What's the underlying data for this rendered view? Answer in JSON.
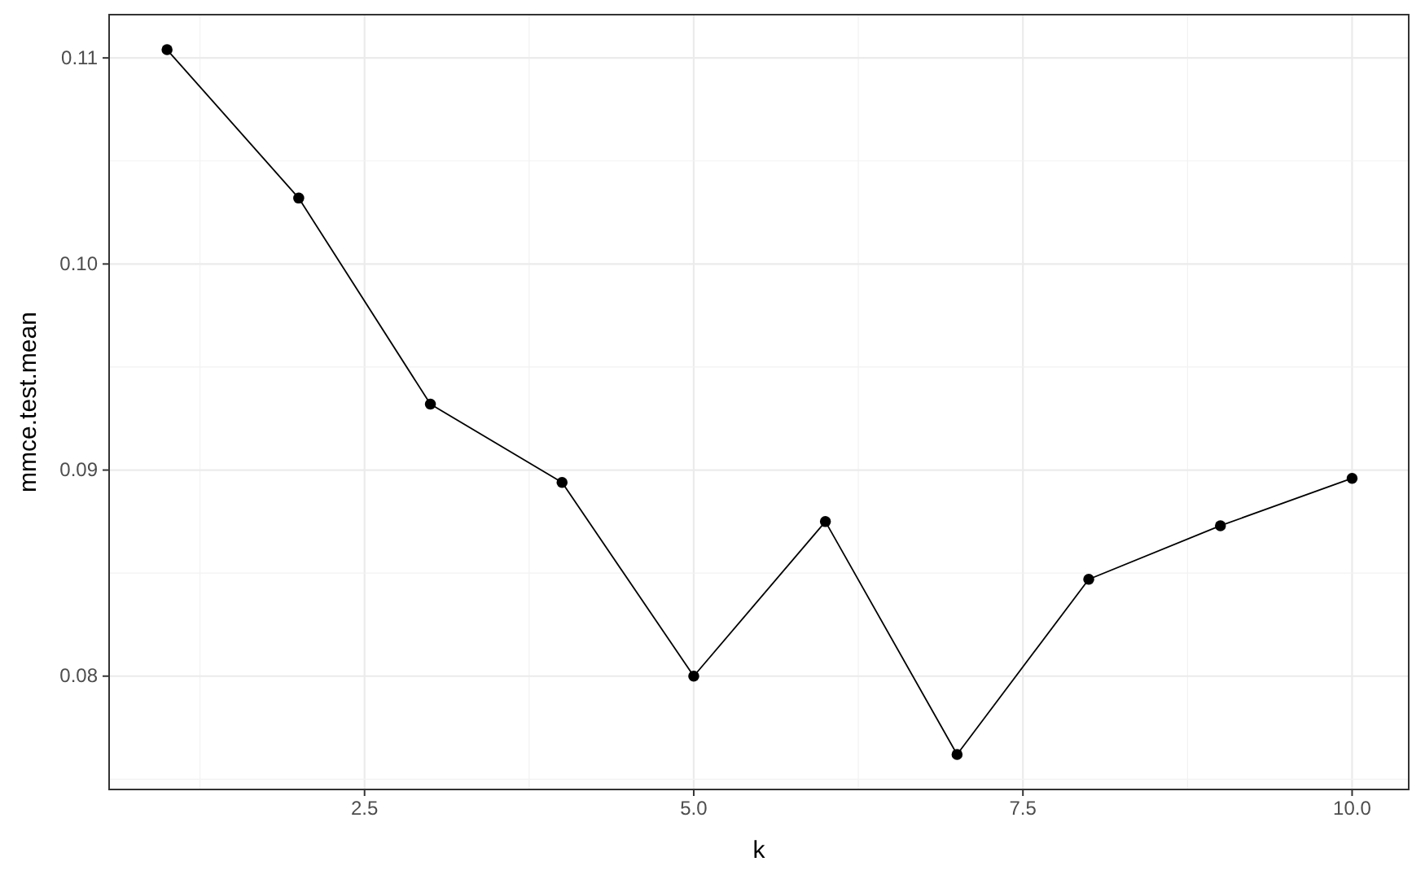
{
  "chart_data": {
    "type": "line",
    "xlabel": "k",
    "ylabel": "mmce.test.mean",
    "x": [
      1,
      2,
      3,
      4,
      5,
      6,
      7,
      8,
      9,
      10
    ],
    "series": [
      {
        "color": "#000000",
        "values": [
          0.1104,
          0.1032,
          0.0932,
          0.0894,
          0.08,
          0.0875,
          0.0762,
          0.0847,
          0.0873,
          0.0896
        ]
      }
    ],
    "xlim": [
      0.56,
      10.43
    ],
    "xticks": [
      {
        "value": 2.5,
        "label": "2.5"
      },
      {
        "value": 5,
        "label": "5.0"
      },
      {
        "value": 7.5,
        "label": "7.5"
      },
      {
        "value": 10,
        "label": "10.0"
      }
    ],
    "ylim": [
      0.0745,
      0.1121
    ],
    "yticks": [
      {
        "value": 0.08,
        "label": "0.08"
      },
      {
        "value": 0.09,
        "label": "0.09"
      },
      {
        "value": 0.1,
        "label": "0.10"
      },
      {
        "value": 0.11,
        "label": "0.11"
      }
    ],
    "grid": true,
    "marker": "circle",
    "line_style": "solid"
  }
}
